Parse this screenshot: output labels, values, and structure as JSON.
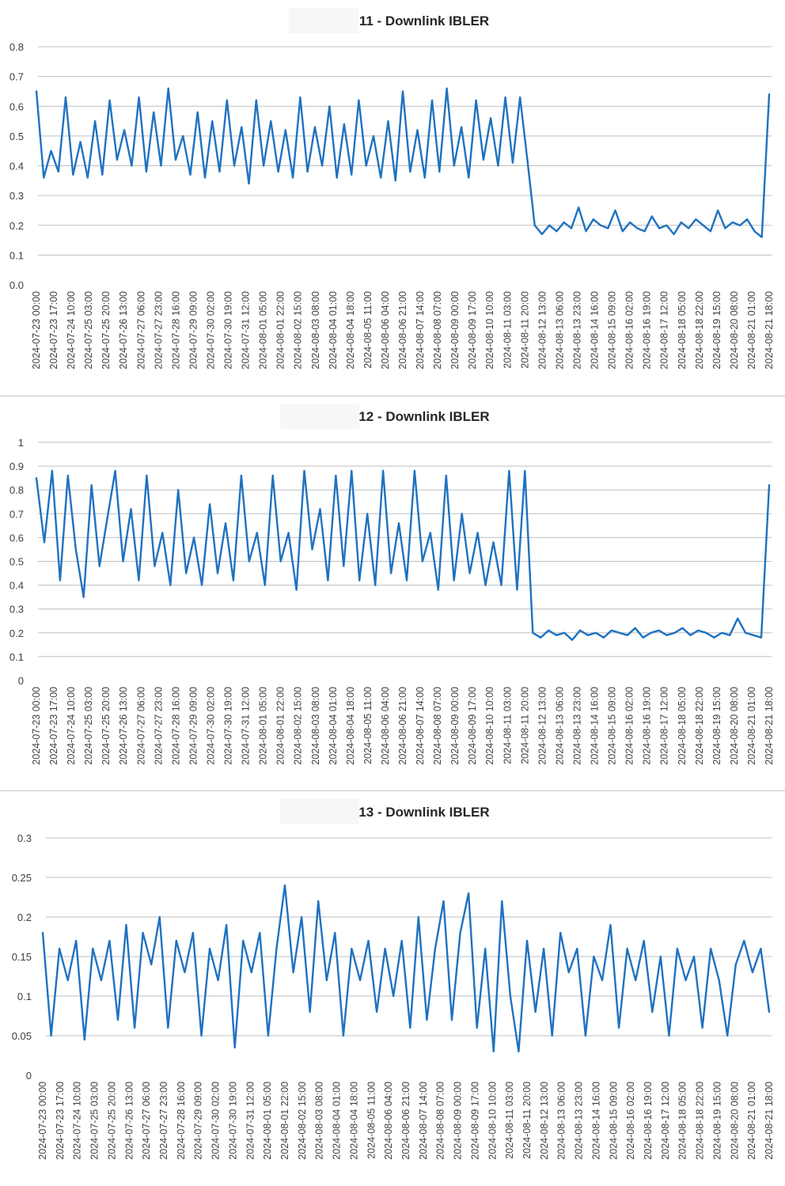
{
  "colors": {
    "line": "#1f72c0",
    "grid": "#bfbfbf",
    "text": "#404040",
    "title": "#262626"
  },
  "chart_data": [
    {
      "type": "line",
      "title": "11 - Downlink IBLER",
      "xlabel": "",
      "ylabel": "",
      "ylim": [
        0,
        0.8
      ],
      "yticks": [
        0,
        0.1,
        0.2,
        0.3,
        0.4,
        0.5,
        0.6,
        0.7,
        0.8
      ],
      "grid": true,
      "legend": "none",
      "x_tick_labels": [
        "2024-07-23 00:00",
        "2024-07-23 17:00",
        "2024-07-24 10:00",
        "2024-07-25 03:00",
        "2024-07-25 20:00",
        "2024-07-26 13:00",
        "2024-07-27 06:00",
        "2024-07-27 23:00",
        "2024-07-28 16:00",
        "2024-07-29 09:00",
        "2024-07-30 02:00",
        "2024-07-30 19:00",
        "2024-07-31 12:00",
        "2024-08-01 05:00",
        "2024-08-01 22:00",
        "2024-08-02 15:00",
        "2024-08-03 08:00",
        "2024-08-04 01:00",
        "2024-08-04 18:00",
        "2024-08-05 11:00",
        "2024-08-06 04:00",
        "2024-08-06 21:00",
        "2024-08-07 14:00",
        "2024-08-08 07:00",
        "2024-08-09 00:00",
        "2024-08-09 17:00",
        "2024-08-10 10:00",
        "2024-08-11 03:00",
        "2024-08-11 20:00",
        "2024-08-12 13:00",
        "2024-08-13 06:00",
        "2024-08-13 23:00",
        "2024-08-14 16:00",
        "2024-08-15 09:00",
        "2024-08-16 02:00",
        "2024-08-16 19:00",
        "2024-08-17 12:00",
        "2024-08-18 05:00",
        "2024-08-18 22:00",
        "2024-08-19 15:00",
        "2024-08-20 08:00",
        "2024-08-21 01:00",
        "2024-08-21 18:00"
      ],
      "series": [
        {
          "values": [
            0.65,
            0.36,
            0.45,
            0.38,
            0.63,
            0.37,
            0.48,
            0.36,
            0.55,
            0.37,
            0.62,
            0.42,
            0.52,
            0.4,
            0.63,
            0.38,
            0.58,
            0.4,
            0.66,
            0.42,
            0.5,
            0.37,
            0.58,
            0.36,
            0.55,
            0.38,
            0.62,
            0.4,
            0.53,
            0.34,
            0.62,
            0.4,
            0.55,
            0.38,
            0.52,
            0.36,
            0.63,
            0.38,
            0.53,
            0.4,
            0.6,
            0.36,
            0.54,
            0.37,
            0.62,
            0.4,
            0.5,
            0.36,
            0.55,
            0.35,
            0.65,
            0.38,
            0.52,
            0.36,
            0.62,
            0.38,
            0.66,
            0.4,
            0.53,
            0.36,
            0.62,
            0.42,
            0.56,
            0.4,
            0.63,
            0.41,
            0.63,
            0.42,
            0.2,
            0.17,
            0.2,
            0.18,
            0.21,
            0.19,
            0.26,
            0.18,
            0.22,
            0.2,
            0.19,
            0.25,
            0.18,
            0.21,
            0.19,
            0.18,
            0.23,
            0.19,
            0.2,
            0.17,
            0.21,
            0.19,
            0.22,
            0.2,
            0.18,
            0.25,
            0.19,
            0.21,
            0.2,
            0.22,
            0.18,
            0.16,
            0.64
          ]
        }
      ]
    },
    {
      "type": "line",
      "title": "12 - Downlink IBLER",
      "xlabel": "",
      "ylabel": "",
      "ylim": [
        0,
        1
      ],
      "yticks": [
        0,
        0.1,
        0.2,
        0.3,
        0.4,
        0.5,
        0.6,
        0.7,
        0.8,
        0.9,
        1
      ],
      "grid": true,
      "legend": "none",
      "x_tick_labels": [
        "2024-07-23 00:00",
        "2024-07-23 17:00",
        "2024-07-24 10:00",
        "2024-07-25 03:00",
        "2024-07-25 20:00",
        "2024-07-26 13:00",
        "2024-07-27 06:00",
        "2024-07-27 23:00",
        "2024-07-28 16:00",
        "2024-07-29 09:00",
        "2024-07-30 02:00",
        "2024-07-30 19:00",
        "2024-07-31 12:00",
        "2024-08-01 05:00",
        "2024-08-01 22:00",
        "2024-08-02 15:00",
        "2024-08-03 08:00",
        "2024-08-04 01:00",
        "2024-08-04 18:00",
        "2024-08-05 11:00",
        "2024-08-06 04:00",
        "2024-08-06 21:00",
        "2024-08-07 14:00",
        "2024-08-08 07:00",
        "2024-08-09 00:00",
        "2024-08-09 17:00",
        "2024-08-10 10:00",
        "2024-08-11 03:00",
        "2024-08-11 20:00",
        "2024-08-12 13:00",
        "2024-08-13 06:00",
        "2024-08-13 23:00",
        "2024-08-14 16:00",
        "2024-08-15 09:00",
        "2024-08-16 02:00",
        "2024-08-16 19:00",
        "2024-08-17 12:00",
        "2024-08-18 05:00",
        "2024-08-18 22:00",
        "2024-08-19 15:00",
        "2024-08-20 08:00",
        "2024-08-21 01:00",
        "2024-08-21 18:00"
      ],
      "series": [
        {
          "values": [
            0.85,
            0.58,
            0.88,
            0.42,
            0.86,
            0.55,
            0.35,
            0.82,
            0.48,
            0.68,
            0.88,
            0.5,
            0.72,
            0.42,
            0.86,
            0.48,
            0.62,
            0.4,
            0.8,
            0.45,
            0.6,
            0.4,
            0.74,
            0.45,
            0.66,
            0.42,
            0.86,
            0.5,
            0.62,
            0.4,
            0.86,
            0.5,
            0.62,
            0.38,
            0.88,
            0.55,
            0.72,
            0.42,
            0.86,
            0.48,
            0.88,
            0.42,
            0.7,
            0.4,
            0.88,
            0.45,
            0.66,
            0.42,
            0.88,
            0.5,
            0.62,
            0.38,
            0.86,
            0.42,
            0.7,
            0.45,
            0.62,
            0.4,
            0.58,
            0.4,
            0.88,
            0.38,
            0.88,
            0.2,
            0.18,
            0.21,
            0.19,
            0.2,
            0.17,
            0.21,
            0.19,
            0.2,
            0.18,
            0.21,
            0.2,
            0.19,
            0.22,
            0.18,
            0.2,
            0.21,
            0.19,
            0.2,
            0.22,
            0.19,
            0.21,
            0.2,
            0.18,
            0.2,
            0.19,
            0.26,
            0.2,
            0.19,
            0.18,
            0.82
          ]
        }
      ]
    },
    {
      "type": "line",
      "title": "13 - Downlink IBLER",
      "xlabel": "",
      "ylabel": "",
      "ylim": [
        0,
        0.3
      ],
      "yticks": [
        0,
        0.05,
        0.1,
        0.15,
        0.2,
        0.25,
        0.3
      ],
      "grid": true,
      "legend": "none",
      "x_tick_labels": [
        "2024-07-23 00:00",
        "2024-07-23 17:00",
        "2024-07-24 10:00",
        "2024-07-25 03:00",
        "2024-07-25 20:00",
        "2024-07-26 13:00",
        "2024-07-27 06:00",
        "2024-07-27 23:00",
        "2024-07-28 16:00",
        "2024-07-29 09:00",
        "2024-07-30 02:00",
        "2024-07-30 19:00",
        "2024-07-31 12:00",
        "2024-08-01 05:00",
        "2024-08-01 22:00",
        "2024-08-02 15:00",
        "2024-08-03 08:00",
        "2024-08-04 01:00",
        "2024-08-04 18:00",
        "2024-08-05 11:00",
        "2024-08-06 04:00",
        "2024-08-06 21:00",
        "2024-08-07 14:00",
        "2024-08-08 07:00",
        "2024-08-09 00:00",
        "2024-08-09 17:00",
        "2024-08-10 10:00",
        "2024-08-11 03:00",
        "2024-08-11 20:00",
        "2024-08-12 13:00",
        "2024-08-13 06:00",
        "2024-08-13 23:00",
        "2024-08-14 16:00",
        "2024-08-15 09:00",
        "2024-08-16 02:00",
        "2024-08-16 19:00",
        "2024-08-17 12:00",
        "2024-08-18 05:00",
        "2024-08-18 22:00",
        "2024-08-19 15:00",
        "2024-08-20 08:00",
        "2024-08-21 01:00",
        "2024-08-21 18:00"
      ],
      "series": [
        {
          "values": [
            0.18,
            0.05,
            0.16,
            0.12,
            0.17,
            0.045,
            0.16,
            0.12,
            0.17,
            0.07,
            0.19,
            0.06,
            0.18,
            0.14,
            0.2,
            0.06,
            0.17,
            0.13,
            0.18,
            0.05,
            0.16,
            0.12,
            0.19,
            0.035,
            0.17,
            0.13,
            0.18,
            0.05,
            0.16,
            0.24,
            0.13,
            0.2,
            0.08,
            0.22,
            0.12,
            0.18,
            0.05,
            0.16,
            0.12,
            0.17,
            0.08,
            0.16,
            0.1,
            0.17,
            0.06,
            0.2,
            0.07,
            0.16,
            0.22,
            0.07,
            0.18,
            0.23,
            0.06,
            0.16,
            0.03,
            0.22,
            0.1,
            0.03,
            0.17,
            0.08,
            0.16,
            0.05,
            0.18,
            0.13,
            0.16,
            0.05,
            0.15,
            0.12,
            0.19,
            0.06,
            0.16,
            0.12,
            0.17,
            0.08,
            0.15,
            0.05,
            0.16,
            0.12,
            0.15,
            0.06,
            0.16,
            0.12,
            0.05,
            0.14,
            0.17,
            0.13,
            0.16,
            0.08
          ]
        }
      ]
    }
  ]
}
